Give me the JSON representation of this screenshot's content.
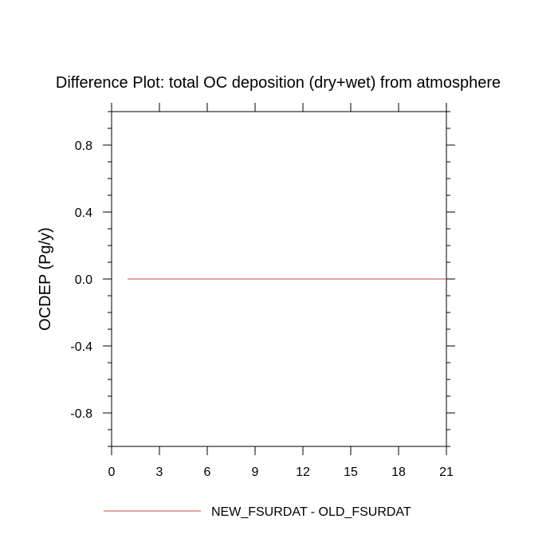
{
  "chart_data": {
    "type": "line",
    "title": "Difference Plot: total OC deposition (dry+wet) from atmosphere",
    "xlabel": "",
    "ylabel": "OCDEP  (Pg/y)",
    "xlim": [
      0,
      21
    ],
    "ylim": [
      -1,
      1
    ],
    "xticks": [
      0,
      3,
      6,
      9,
      12,
      15,
      18,
      21
    ],
    "xtick_labels": [
      "0",
      "3",
      "6",
      "9",
      "12",
      "15",
      "18",
      "21"
    ],
    "yticks": [
      0.8,
      0.4,
      0.0,
      -0.4,
      -0.8
    ],
    "ytick_labels": [
      "0.8",
      "0.4",
      "0.0",
      "-0.4",
      "-0.8"
    ],
    "grid": false,
    "legend_position": "bottom",
    "series": [
      {
        "name": "NEW_FSURDAT - OLD_FSURDAT",
        "color": "#e06666",
        "x": [
          1,
          2,
          3,
          4,
          5,
          6,
          7,
          8,
          9,
          10,
          11,
          12,
          13,
          14,
          15,
          16,
          17,
          18,
          19,
          20,
          21
        ],
        "y": [
          0,
          0,
          0,
          0,
          0,
          0,
          0,
          0,
          0,
          0,
          0,
          0,
          0,
          0,
          0,
          0,
          0,
          0,
          0,
          0,
          0
        ]
      }
    ]
  }
}
